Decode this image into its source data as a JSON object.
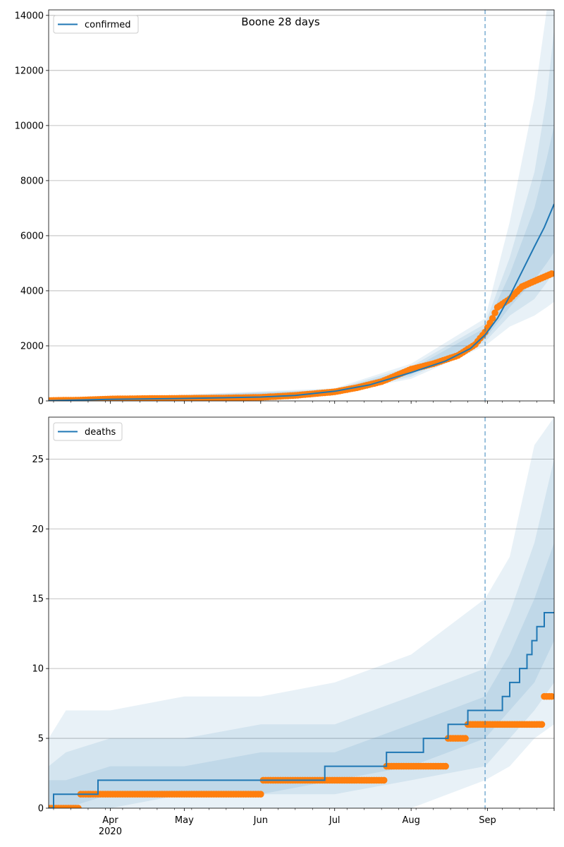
{
  "figure": {
    "title": "Boone 28 days"
  },
  "chart_data": [
    {
      "type": "line",
      "legend": "confirmed",
      "legend_position": "top-left",
      "grid": "y",
      "x_range": [
        "2020-03-07",
        "2020-09-28"
      ],
      "ylim": [
        0,
        14200
      ],
      "yticks": [
        0,
        2000,
        4000,
        6000,
        8000,
        10000,
        12000,
        14000
      ],
      "forecast_start": "2020-08-31",
      "series": [
        {
          "name": "confirmed",
          "role": "model median",
          "color": "#1f77b4",
          "x": [
            "2020-03-07",
            "2020-04-01",
            "2020-05-01",
            "2020-06-01",
            "2020-06-15",
            "2020-07-01",
            "2020-07-15",
            "2020-08-01",
            "2020-08-15",
            "2020-08-25",
            "2020-08-31",
            "2020-09-05",
            "2020-09-10",
            "2020-09-15",
            "2020-09-20",
            "2020-09-24",
            "2020-09-28"
          ],
          "y": [
            10,
            60,
            90,
            140,
            200,
            350,
            580,
            1030,
            1450,
            1900,
            2400,
            3000,
            3800,
            4700,
            5600,
            6300,
            7150
          ]
        },
        {
          "role": "observed",
          "color": "#ff7f0e",
          "x": [
            "2020-03-07",
            "2020-03-20",
            "2020-04-01",
            "2020-04-15",
            "2020-05-01",
            "2020-05-15",
            "2020-06-01",
            "2020-06-15",
            "2020-07-01",
            "2020-07-10",
            "2020-07-20",
            "2020-08-01",
            "2020-08-10",
            "2020-08-20",
            "2020-08-27",
            "2020-08-31",
            "2020-09-03",
            "2020-09-05",
            "2020-09-10",
            "2020-09-15",
            "2020-09-20",
            "2020-09-27"
          ],
          "y": [
            15,
            30,
            70,
            85,
            95,
            100,
            130,
            200,
            330,
            480,
            700,
            1150,
            1350,
            1650,
            2050,
            2500,
            3000,
            3400,
            3700,
            4150,
            4350,
            4620
          ]
        }
      ],
      "bands": [
        {
          "opacity": 0.1,
          "x": [
            "2020-03-07",
            "2020-07-01",
            "2020-08-01",
            "2020-08-31",
            "2020-09-10",
            "2020-09-20",
            "2020-09-25",
            "2020-09-28"
          ],
          "lower": [
            5,
            280,
            800,
            2000,
            2700,
            3100,
            3400,
            3600
          ],
          "upper": [
            20,
            460,
            1350,
            3000,
            6500,
            11000,
            15000,
            15000
          ]
        },
        {
          "opacity": 0.1,
          "x": [
            "2020-03-07",
            "2020-07-01",
            "2020-08-01",
            "2020-08-31",
            "2020-09-10",
            "2020-09-20",
            "2020-09-25",
            "2020-09-28"
          ],
          "lower": [
            7,
            300,
            880,
            2150,
            3100,
            3700,
            4300,
            4700
          ],
          "upper": [
            16,
            420,
            1250,
            2800,
            5200,
            8300,
            11000,
            13500
          ]
        },
        {
          "opacity": 0.1,
          "x": [
            "2020-03-07",
            "2020-07-01",
            "2020-08-01",
            "2020-08-31",
            "2020-09-10",
            "2020-09-20",
            "2020-09-25",
            "2020-09-28"
          ],
          "lower": [
            8,
            320,
            950,
            2250,
            3400,
            4400,
            5000,
            5400
          ],
          "upper": [
            14,
            390,
            1150,
            2650,
            4600,
            7000,
            8800,
            10000
          ]
        }
      ]
    },
    {
      "type": "line",
      "legend": "deaths",
      "legend_position": "top-left",
      "grid": "y",
      "x_range": [
        "2020-03-07",
        "2020-09-28"
      ],
      "ylim": [
        0,
        28
      ],
      "yticks": [
        0,
        5,
        10,
        15,
        20,
        25
      ],
      "xticks": [
        {
          "date": "2020-04-01",
          "label": "Apr",
          "sublabel": "2020"
        },
        {
          "date": "2020-05-01",
          "label": "May"
        },
        {
          "date": "2020-06-01",
          "label": "Jun"
        },
        {
          "date": "2020-07-01",
          "label": "Jul"
        },
        {
          "date": "2020-08-01",
          "label": "Aug"
        },
        {
          "date": "2020-09-01",
          "label": "Sep"
        }
      ],
      "forecast_start": "2020-08-31",
      "series": [
        {
          "name": "deaths",
          "role": "model median (step)",
          "color": "#1f77b4",
          "x": [
            "2020-03-07",
            "2020-03-09",
            "2020-03-27",
            "2020-06-01",
            "2020-06-27",
            "2020-07-22",
            "2020-08-06",
            "2020-08-16",
            "2020-08-24",
            "2020-09-02",
            "2020-09-07",
            "2020-09-10",
            "2020-09-14",
            "2020-09-17",
            "2020-09-19",
            "2020-09-21",
            "2020-09-24",
            "2020-09-26",
            "2020-09-28"
          ],
          "y": [
            0,
            1,
            2,
            2,
            3,
            4,
            5,
            6,
            7,
            7,
            8,
            9,
            10,
            11,
            12,
            13,
            14,
            14,
            14
          ]
        },
        {
          "role": "observed",
          "color": "#ff7f0e",
          "x": [
            "2020-03-07",
            "2020-03-20",
            "2020-04-01",
            "2020-05-01",
            "2020-06-01",
            "2020-06-02",
            "2020-07-01",
            "2020-07-21",
            "2020-07-22",
            "2020-08-15",
            "2020-08-16",
            "2020-08-23",
            "2020-08-24",
            "2020-09-10",
            "2020-09-23",
            "2020-09-24",
            "2020-09-27"
          ],
          "y": [
            0,
            1,
            1,
            1,
            1,
            2,
            2,
            2,
            3,
            3,
            5,
            5,
            6,
            6,
            6,
            8,
            8
          ]
        }
      ],
      "bands": [
        {
          "opacity": 0.1,
          "x": [
            "2020-03-07",
            "2020-03-14",
            "2020-04-01",
            "2020-05-01",
            "2020-06-01",
            "2020-07-01",
            "2020-08-01",
            "2020-08-31",
            "2020-09-10",
            "2020-09-20",
            "2020-09-28"
          ],
          "lower": [
            0,
            0,
            0,
            0,
            0,
            0,
            0,
            2,
            3,
            5,
            6
          ],
          "upper": [
            5,
            7,
            7,
            8,
            8,
            9,
            11,
            15,
            18,
            26,
            29
          ]
        },
        {
          "opacity": 0.1,
          "x": [
            "2020-03-07",
            "2020-03-14",
            "2020-04-01",
            "2020-05-01",
            "2020-06-01",
            "2020-07-01",
            "2020-08-01",
            "2020-08-31",
            "2020-09-10",
            "2020-09-20",
            "2020-09-28"
          ],
          "lower": [
            0,
            0,
            0,
            1,
            1,
            1,
            2,
            3,
            5,
            7,
            9
          ],
          "upper": [
            3,
            4,
            5,
            5,
            6,
            6,
            8,
            10,
            14,
            19,
            25
          ]
        },
        {
          "opacity": 0.1,
          "x": [
            "2020-03-07",
            "2020-03-14",
            "2020-04-01",
            "2020-05-01",
            "2020-06-01",
            "2020-07-01",
            "2020-08-01",
            "2020-08-31",
            "2020-09-10",
            "2020-09-20",
            "2020-09-28"
          ],
          "lower": [
            0,
            0,
            1,
            1,
            1,
            2,
            3,
            5,
            7,
            9,
            12
          ],
          "upper": [
            2,
            2,
            3,
            3,
            4,
            4,
            6,
            8,
            11,
            15,
            19
          ]
        }
      ]
    }
  ]
}
